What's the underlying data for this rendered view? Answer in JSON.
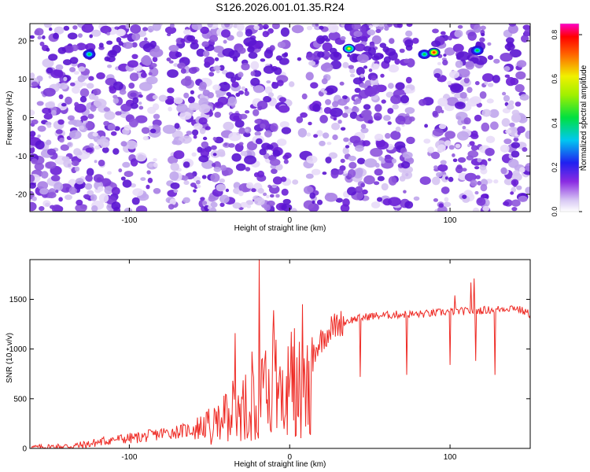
{
  "figure_title": "S126.2026.001.01.35.R24",
  "chart_data": [
    {
      "type": "heatmap",
      "title": "S126.2026.001.01.35.R24",
      "xlabel": "Height of straight line (km)",
      "ylabel": "Frequency (Hz)",
      "xlim": [
        -162,
        150
      ],
      "ylim": [
        -24.5,
        24.5
      ],
      "x_ticks": [
        -100,
        0,
        100
      ],
      "y_ticks": [
        -20,
        -10,
        0,
        10,
        20
      ],
      "colorbar": {
        "label": "Normalized spectral amplitude",
        "range": [
          0.0,
          0.85
        ],
        "ticks": [
          "0.0",
          "0.2",
          "0.4",
          "0.6",
          "0.8"
        ],
        "colormap": "rainbow (white–violet–blue–cyan–green–yellow–red–magenta)"
      },
      "features": [
        {
          "x": -125,
          "y": 16.5,
          "amplitude": 0.35
        },
        {
          "x": 37,
          "y": 18,
          "amplitude": 0.5
        },
        {
          "x": 84,
          "y": 16.5,
          "amplitude": 0.4
        },
        {
          "x": 90,
          "y": 17.0,
          "amplitude": 0.7
        },
        {
          "x": 117,
          "y": 17.5,
          "amplitude": 0.45
        }
      ],
      "band_frequency_hz": 18
    },
    {
      "type": "line",
      "xlabel": "Height of straight line (km)",
      "ylabel": "SNR (10 * v/v)",
      "xlim": [
        -162,
        150
      ],
      "ylim": [
        0,
        1900
      ],
      "x_ticks": [
        -100,
        0,
        100
      ],
      "y_ticks": [
        0,
        500,
        1000,
        1500
      ],
      "series": [
        {
          "color": "#ee2a24",
          "x": [
            -162,
            -150,
            -140,
            -130,
            -120,
            -110,
            -100,
            -90,
            -80,
            -70,
            -60,
            -50,
            -45,
            -40,
            -35,
            -30,
            -25,
            -20,
            -15,
            -10,
            -5,
            0,
            5,
            10,
            15,
            20,
            25,
            30,
            35,
            40,
            50,
            60,
            70,
            80,
            90,
            100,
            110,
            120,
            130,
            140,
            150
          ],
          "y": [
            10,
            15,
            20,
            30,
            60,
            90,
            100,
            120,
            150,
            170,
            190,
            250,
            330,
            400,
            500,
            600,
            700,
            800,
            850,
            870,
            880,
            880,
            900,
            920,
            980,
            1100,
            1200,
            1250,
            1280,
            1300,
            1330,
            1340,
            1350,
            1350,
            1360,
            1380,
            1380,
            1390,
            1400,
            1420,
            1350
          ]
        }
      ],
      "spikes": [
        {
          "x": -19,
          "y": 1900
        },
        {
          "x": -34,
          "y": 1160
        },
        {
          "x": -10,
          "y": 1390
        },
        {
          "x": 8,
          "y": 1450
        },
        {
          "x": 10,
          "y": 220
        },
        {
          "x": 44,
          "y": 720
        },
        {
          "x": 73,
          "y": 740
        },
        {
          "x": 100,
          "y": 840
        },
        {
          "x": 103,
          "y": 1540
        },
        {
          "x": 113,
          "y": 1670
        },
        {
          "x": 115,
          "y": 1710
        },
        {
          "x": 116,
          "y": 880
        },
        {
          "x": 128,
          "y": 740
        }
      ]
    }
  ]
}
